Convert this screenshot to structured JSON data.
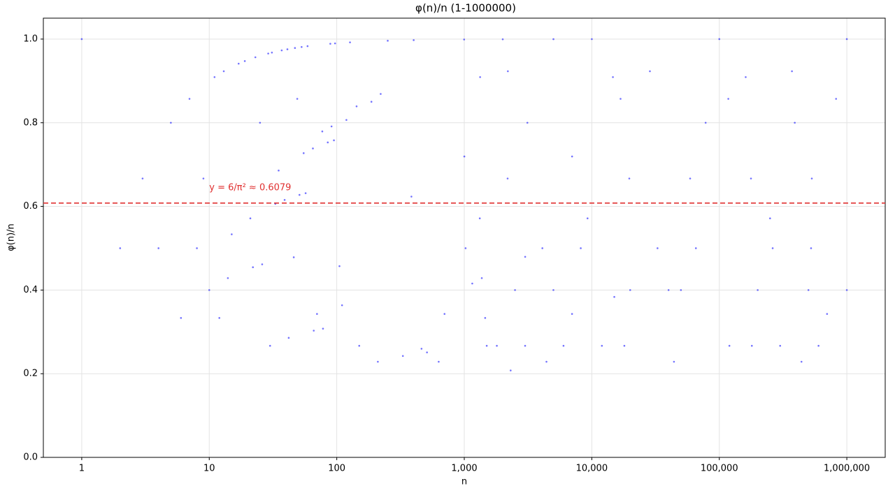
{
  "chart_data": {
    "type": "scatter",
    "title": "φ(n)/n (1-1000000)",
    "x_label": "n",
    "y_label": "φ(n)/n",
    "x_scale": "log",
    "grid": true,
    "color": "#0000ff",
    "xlim": [
      0.5,
      2000000
    ],
    "ylim": [
      0,
      1.05
    ],
    "xticks": [
      1,
      10,
      100,
      {
        "value": 1000,
        "label": "1,000"
      },
      {
        "value": 10000,
        "label": "10,000"
      },
      {
        "value": 100000,
        "label": "100,000"
      },
      {
        "value": 1000000,
        "label": "1,000,000"
      }
    ],
    "yticks": [
      {
        "value": 0,
        "label": "0.0"
      },
      {
        "value": 0.2,
        "label": "0.2"
      },
      {
        "value": 0.4,
        "label": "0.4"
      },
      {
        "value": 0.6,
        "label": "0.6"
      },
      {
        "value": 0.8,
        "label": "0.8"
      },
      {
        "value": 1,
        "label": "1.0"
      }
    ],
    "hline": {
      "value": 0.6079,
      "label": "y = 6/π² ≈ 0.6079",
      "color": "#e03030"
    },
    "x": [
      1,
      2,
      3,
      4,
      5,
      6,
      7,
      8,
      9,
      10,
      11,
      12,
      13,
      14,
      15,
      17,
      19,
      21,
      22,
      23,
      25,
      26,
      29,
      30,
      31,
      33,
      35,
      37,
      39,
      41,
      42,
      46,
      47,
      49,
      51,
      53,
      55,
      57,
      59,
      65,
      66,
      70,
      77,
      78,
      85,
      89,
      91,
      95,
      97,
      105,
      110,
      119,
      127,
      143,
      150,
      187,
      210,
      221,
      251,
      330,
      385,
      401,
      462,
      510,
      630,
      700,
      997,
      1001,
      1024,
      1155,
      1323,
      1331,
      1372,
      1458,
      1500,
      1800,
      2003,
      2187,
      2197,
      2310,
      2500,
      3000,
      3003,
      3125,
      4096,
      4410,
      5000,
      5003,
      6000,
      7000,
      7007,
      8192,
      9261,
      10007,
      12000,
      14641,
      15015,
      16807,
      18000,
      19683,
      20000,
      28561,
      32768,
      40000,
      44100,
      50000,
      59049,
      65536,
      78125,
      100003,
      117649,
      120000,
      161051,
      177147,
      180000,
      200000,
      250047,
      262144,
      300000,
      371293,
      390625,
      441000,
      500000,
      524288,
      531441,
      600000,
      700000,
      823543,
      999983,
      1000000
    ],
    "values": [
      1,
      0.5,
      0.6667,
      0.5,
      0.8,
      0.3333,
      0.8571,
      0.5,
      0.6667,
      0.4,
      0.9091,
      0.3333,
      0.9231,
      0.4286,
      0.5333,
      0.9412,
      0.9474,
      0.5714,
      0.4545,
      0.9565,
      0.8,
      0.4615,
      0.9655,
      0.2667,
      0.9677,
      0.6061,
      0.6857,
      0.973,
      0.6154,
      0.9756,
      0.2857,
      0.4783,
      0.9787,
      0.8571,
      0.6275,
      0.9811,
      0.7273,
      0.6316,
      0.9831,
      0.7385,
      0.303,
      0.3429,
      0.7792,
      0.3077,
      0.7529,
      0.9888,
      0.7912,
      0.7579,
      0.9897,
      0.4571,
      0.3636,
      0.8067,
      0.9921,
      0.8392,
      0.2667,
      0.8502,
      0.2286,
      0.8688,
      0.996,
      0.2424,
      0.6234,
      0.9975,
      0.2597,
      0.251,
      0.2286,
      0.3429,
      0.999,
      0.7193,
      0.5,
      0.4156,
      0.5714,
      0.9091,
      0.4286,
      0.3333,
      0.2667,
      0.2667,
      0.9995,
      0.6667,
      0.9231,
      0.2078,
      0.4,
      0.2667,
      0.4795,
      0.8,
      0.5,
      0.2286,
      0.4,
      0.9998,
      0.2667,
      0.3429,
      0.7193,
      0.5,
      0.5714,
      0.9999,
      0.2667,
      0.9091,
      0.3836,
      0.8571,
      0.2667,
      0.6667,
      0.4,
      0.9231,
      0.5,
      0.4,
      0.2286,
      0.4,
      0.6667,
      0.5,
      0.8,
      1.0,
      0.8571,
      0.2667,
      0.9091,
      0.6667,
      0.2667,
      0.4,
      0.5714,
      0.5,
      0.2667,
      0.9231,
      0.8,
      0.2286,
      0.4,
      0.5,
      0.6667,
      0.2667,
      0.3429,
      0.8571,
      1.0,
      0.4
    ]
  }
}
